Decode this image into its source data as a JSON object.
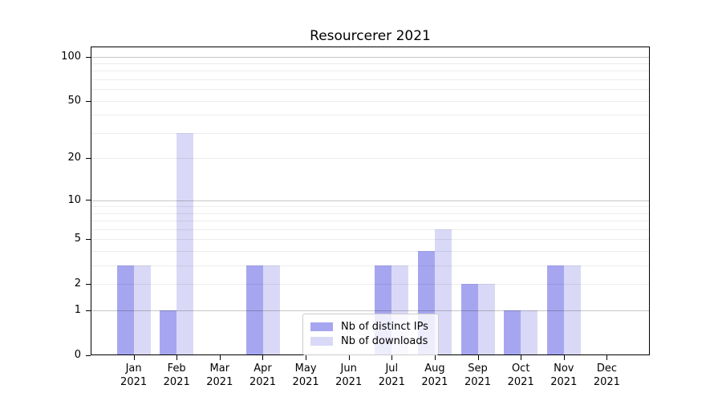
{
  "chart_data": {
    "type": "bar",
    "title": "Resourcerer 2021",
    "scale": "log1p",
    "ylim": [
      0,
      117
    ],
    "grid": "both",
    "legend_position": "lower-center",
    "categories": [
      {
        "month": "Jan",
        "year": "2021"
      },
      {
        "month": "Feb",
        "year": "2021"
      },
      {
        "month": "Mar",
        "year": "2021"
      },
      {
        "month": "Apr",
        "year": "2021"
      },
      {
        "month": "May",
        "year": "2021"
      },
      {
        "month": "Jun",
        "year": "2021"
      },
      {
        "month": "Jul",
        "year": "2021"
      },
      {
        "month": "Aug",
        "year": "2021"
      },
      {
        "month": "Sep",
        "year": "2021"
      },
      {
        "month": "Oct",
        "year": "2021"
      },
      {
        "month": "Nov",
        "year": "2021"
      },
      {
        "month": "Dec",
        "year": "2021"
      }
    ],
    "series": [
      {
        "key": "distinct-ips",
        "name": "Nb of distinct IPs",
        "color": "#a6a6f0",
        "values": [
          3,
          1,
          0,
          3,
          0,
          0,
          3,
          4,
          2,
          1,
          3,
          0
        ]
      },
      {
        "key": "downloads",
        "name": "Nb of downloads",
        "color": "#d9d9f7",
        "values": [
          3,
          30,
          0,
          3,
          0,
          0,
          3,
          6,
          2,
          1,
          3,
          0
        ]
      }
    ],
    "yticks": [
      {
        "label": "100",
        "value": 100,
        "major": true
      },
      {
        "label": "50",
        "value": 50,
        "major": false
      },
      {
        "label": "20",
        "value": 20,
        "major": false
      },
      {
        "label": "10",
        "value": 10,
        "major": true
      },
      {
        "label": "5",
        "value": 5,
        "major": false
      },
      {
        "label": "2",
        "value": 2,
        "major": false
      },
      {
        "label": "1",
        "value": 1,
        "major": true
      },
      {
        "label": "0",
        "value": 0,
        "major": false
      }
    ],
    "minor_gridlines": [
      3,
      4,
      6,
      7,
      8,
      9,
      30,
      40,
      60,
      70,
      80,
      90
    ]
  },
  "colors": {
    "bar_distinct_ips": "#a6a6f0",
    "bar_downloads": "#d9d9f7",
    "background": "#ffffff",
    "spine": "#000000"
  }
}
